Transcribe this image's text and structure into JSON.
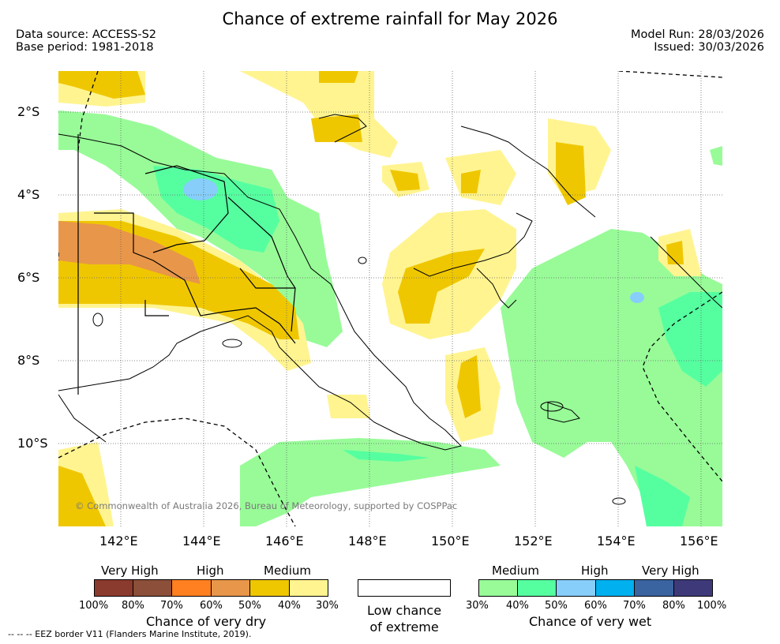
{
  "title": "Chance of extreme rainfall for May 2026",
  "data_source": "Data source: ACCESS-S2",
  "base_period": "Base period: 1981-2018",
  "model_run": "Model Run: 28/03/2026",
  "issued": "Issued: 30/03/2026",
  "copyright": "© Commonwealth of Australia 2026, Bureau of Meteorology, supported by COSPPac",
  "map": {
    "lon_range": [
      140.5,
      156.5
    ],
    "lat_range": [
      -12.0,
      -1.0
    ],
    "lat_ticks": [
      "2°S",
      "4°S",
      "6°S",
      "8°S",
      "10°S"
    ],
    "lon_ticks": [
      "142°E",
      "144°E",
      "146°E",
      "148°E",
      "150°E",
      "152°E",
      "154°E",
      "156°E"
    ],
    "grid": "dotted"
  },
  "legend": {
    "dry": {
      "category_labels": [
        "Very High",
        "High",
        "Medium"
      ],
      "colors": [
        "#8b3a2e",
        "#8b4f3a",
        "#ff8020",
        "#e8964a",
        "#efc700",
        "#fff490"
      ],
      "ticks": [
        "100%",
        "80%",
        "70%",
        "60%",
        "50%",
        "40%",
        "30%"
      ],
      "caption": "Chance of very dry"
    },
    "low": {
      "color": "#ffffff",
      "caption_line1": "Low chance",
      "caption_line2": "of extreme"
    },
    "wet": {
      "category_labels": [
        "Medium",
        "High",
        "Very High"
      ],
      "colors": [
        "#98fb98",
        "#55ffa0",
        "#87cefa",
        "#00b0ef",
        "#3a64a0",
        "#3e3a7a"
      ],
      "ticks": [
        "30%",
        "40%",
        "50%",
        "60%",
        "70%",
        "80%",
        "100%"
      ],
      "caption": "Chance of very wet"
    }
  },
  "eez_note": "--  --  -- EEZ border V11 (Flanders Marine Institute, 2019)."
}
